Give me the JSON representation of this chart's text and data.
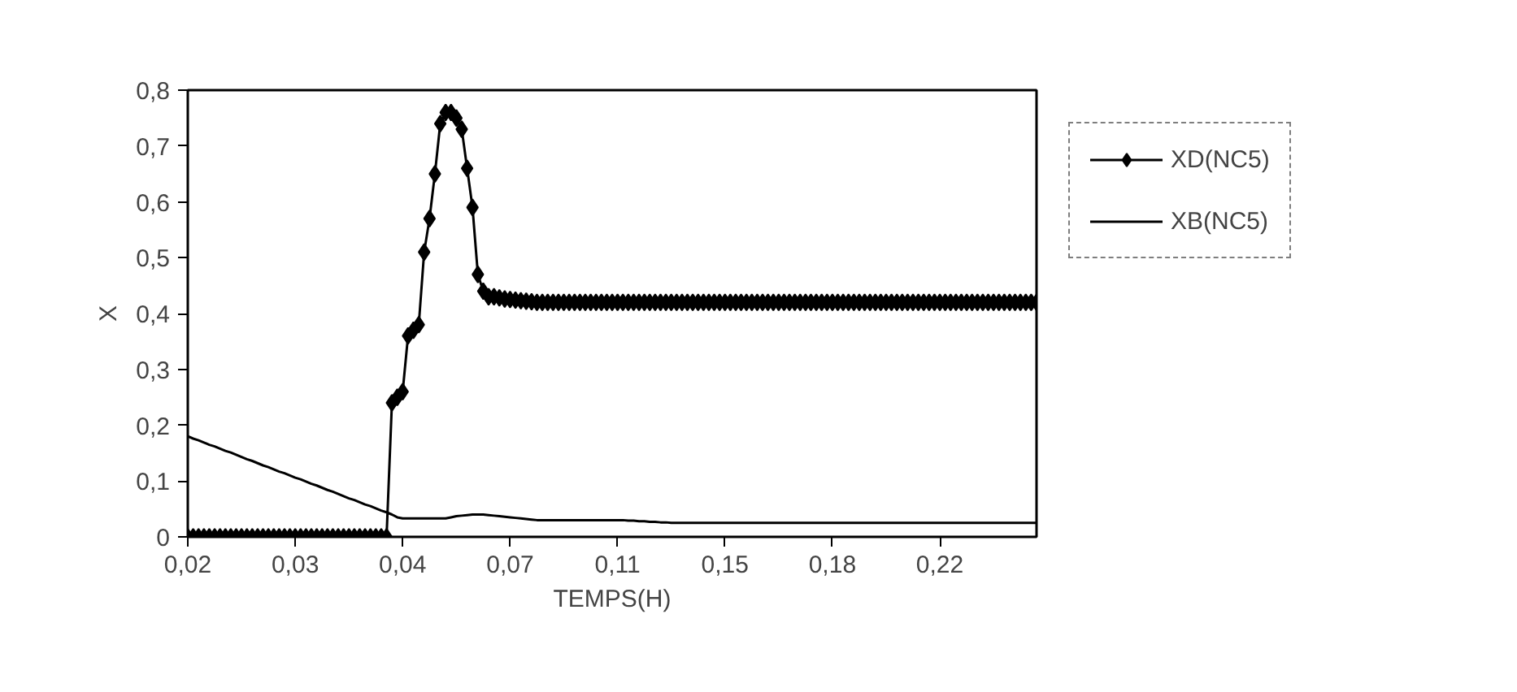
{
  "chart_data": {
    "type": "line",
    "xlabel": "TEMPS(H)",
    "ylabel": "X",
    "categories": [
      "0,02",
      null,
      null,
      null,
      null,
      null,
      null,
      null,
      null,
      null,
      null,
      null,
      null,
      null,
      null,
      null,
      null,
      null,
      null,
      null,
      "0,03",
      null,
      null,
      null,
      null,
      null,
      null,
      null,
      null,
      null,
      null,
      null,
      null,
      null,
      null,
      null,
      null,
      null,
      null,
      null,
      "0,04",
      null,
      null,
      null,
      null,
      null,
      null,
      null,
      null,
      null,
      null,
      null,
      null,
      null,
      null,
      null,
      null,
      null,
      null,
      null,
      "0,07",
      null,
      null,
      null,
      null,
      null,
      null,
      null,
      null,
      null,
      null,
      null,
      null,
      null,
      null,
      null,
      null,
      null,
      null,
      null,
      "0,11",
      null,
      null,
      null,
      null,
      null,
      null,
      null,
      null,
      null,
      null,
      null,
      null,
      null,
      null,
      null,
      null,
      null,
      null,
      null,
      "0,15",
      null,
      null,
      null,
      null,
      null,
      null,
      null,
      null,
      null,
      null,
      null,
      null,
      null,
      null,
      null,
      null,
      null,
      null,
      null,
      "0,18",
      null,
      null,
      null,
      null,
      null,
      null,
      null,
      null,
      null,
      null,
      null,
      null,
      null,
      null,
      null,
      null,
      null,
      null,
      null,
      "0,22",
      null,
      null,
      null,
      null,
      null,
      null,
      null,
      null,
      null,
      null,
      null,
      null,
      null,
      null,
      null,
      null,
      null,
      null
    ],
    "series": [
      {
        "name": "XD(NC5)",
        "color": "#000000",
        "marker": "diamond",
        "values": [
          0,
          0,
          0,
          0,
          0,
          0,
          0,
          0,
          0,
          0,
          0,
          0,
          0,
          0,
          0,
          0,
          0,
          0,
          0,
          0,
          0,
          0,
          0,
          0,
          0,
          0,
          0,
          0,
          0,
          0,
          0,
          0,
          0,
          0,
          0,
          0,
          0,
          0,
          0.24,
          0.25,
          0.26,
          0.36,
          0.37,
          0.38,
          0.51,
          0.57,
          0.65,
          0.74,
          0.76,
          0.76,
          0.75,
          0.73,
          0.66,
          0.59,
          0.47,
          0.44,
          0.43,
          0.43,
          0.428,
          0.426,
          0.425,
          0.424,
          0.423,
          0.422,
          0.421,
          0.42,
          0.42,
          0.42,
          0.42,
          0.42,
          0.42,
          0.42,
          0.42,
          0.42,
          0.42,
          0.42,
          0.42,
          0.42,
          0.42,
          0.42,
          0.42,
          0.42,
          0.42,
          0.42,
          0.42,
          0.42,
          0.42,
          0.42,
          0.42,
          0.42,
          0.42,
          0.42,
          0.42,
          0.42,
          0.42,
          0.42,
          0.42,
          0.42,
          0.42,
          0.42,
          0.42,
          0.42,
          0.42,
          0.42,
          0.42,
          0.42,
          0.42,
          0.42,
          0.42,
          0.42,
          0.42,
          0.42,
          0.42,
          0.42,
          0.42,
          0.42,
          0.42,
          0.42,
          0.42,
          0.42,
          0.42,
          0.42,
          0.42,
          0.42,
          0.42,
          0.42,
          0.42,
          0.42,
          0.42,
          0.42,
          0.42,
          0.42,
          0.42,
          0.42,
          0.42,
          0.42,
          0.42,
          0.42,
          0.42,
          0.42,
          0.42,
          0.42,
          0.42,
          0.42,
          0.42,
          0.42,
          0.42,
          0.42,
          0.42,
          0.42,
          0.42,
          0.42,
          0.42,
          0.42,
          0.42,
          0.42,
          0.42,
          0.42,
          0.42
        ]
      },
      {
        "name": "XB(NC5)",
        "color": "#000000",
        "marker": "none",
        "values": [
          0.18,
          0.176,
          0.173,
          0.169,
          0.165,
          0.162,
          0.158,
          0.154,
          0.151,
          0.147,
          0.143,
          0.139,
          0.136,
          0.132,
          0.128,
          0.125,
          0.121,
          0.117,
          0.114,
          0.11,
          0.106,
          0.103,
          0.099,
          0.095,
          0.092,
          0.088,
          0.084,
          0.081,
          0.077,
          0.073,
          0.069,
          0.066,
          0.062,
          0.058,
          0.055,
          0.051,
          0.047,
          0.044,
          0.04,
          0.035,
          0.033,
          0.033,
          0.033,
          0.033,
          0.033,
          0.033,
          0.033,
          0.033,
          0.033,
          0.035,
          0.037,
          0.038,
          0.039,
          0.04,
          0.04,
          0.04,
          0.039,
          0.038,
          0.037,
          0.036,
          0.035,
          0.034,
          0.033,
          0.032,
          0.031,
          0.03,
          0.03,
          0.03,
          0.03,
          0.03,
          0.03,
          0.03,
          0.03,
          0.03,
          0.03,
          0.03,
          0.03,
          0.03,
          0.03,
          0.03,
          0.03,
          0.03,
          0.029,
          0.029,
          0.028,
          0.028,
          0.027,
          0.027,
          0.026,
          0.026,
          0.025,
          0.025,
          0.025,
          0.025,
          0.025,
          0.025,
          0.025,
          0.025,
          0.025,
          0.025,
          0.025,
          0.025,
          0.025,
          0.025,
          0.025,
          0.025,
          0.025,
          0.025,
          0.025,
          0.025,
          0.025,
          0.025,
          0.025,
          0.025,
          0.025,
          0.025,
          0.025,
          0.025,
          0.025,
          0.025,
          0.025,
          0.025,
          0.025,
          0.025,
          0.025,
          0.025,
          0.025,
          0.025,
          0.025,
          0.025,
          0.025,
          0.025,
          0.025,
          0.025,
          0.025,
          0.025,
          0.025,
          0.025,
          0.025,
          0.025,
          0.025,
          0.025,
          0.025,
          0.025,
          0.025,
          0.025,
          0.025,
          0.025,
          0.025,
          0.025,
          0.025,
          0.025,
          0.025,
          0.025,
          0.025,
          0.025,
          0.025,
          0.025,
          0.025
        ]
      }
    ],
    "ylim": [
      0,
      0.8
    ],
    "yticks": [
      0,
      {
        "value": 0.1,
        "label": "0,1"
      },
      {
        "value": 0.2,
        "label": "0,2"
      },
      {
        "value": 0.3,
        "label": "0,3"
      },
      {
        "value": 0.4,
        "label": "0,4"
      },
      {
        "value": 0.5,
        "label": "0,5"
      },
      {
        "value": 0.6,
        "label": "0,6"
      },
      {
        "value": 0.7,
        "label": "0,7"
      },
      {
        "value": 0.8,
        "label": "0,8"
      }
    ],
    "grid": false,
    "legend": "right"
  }
}
